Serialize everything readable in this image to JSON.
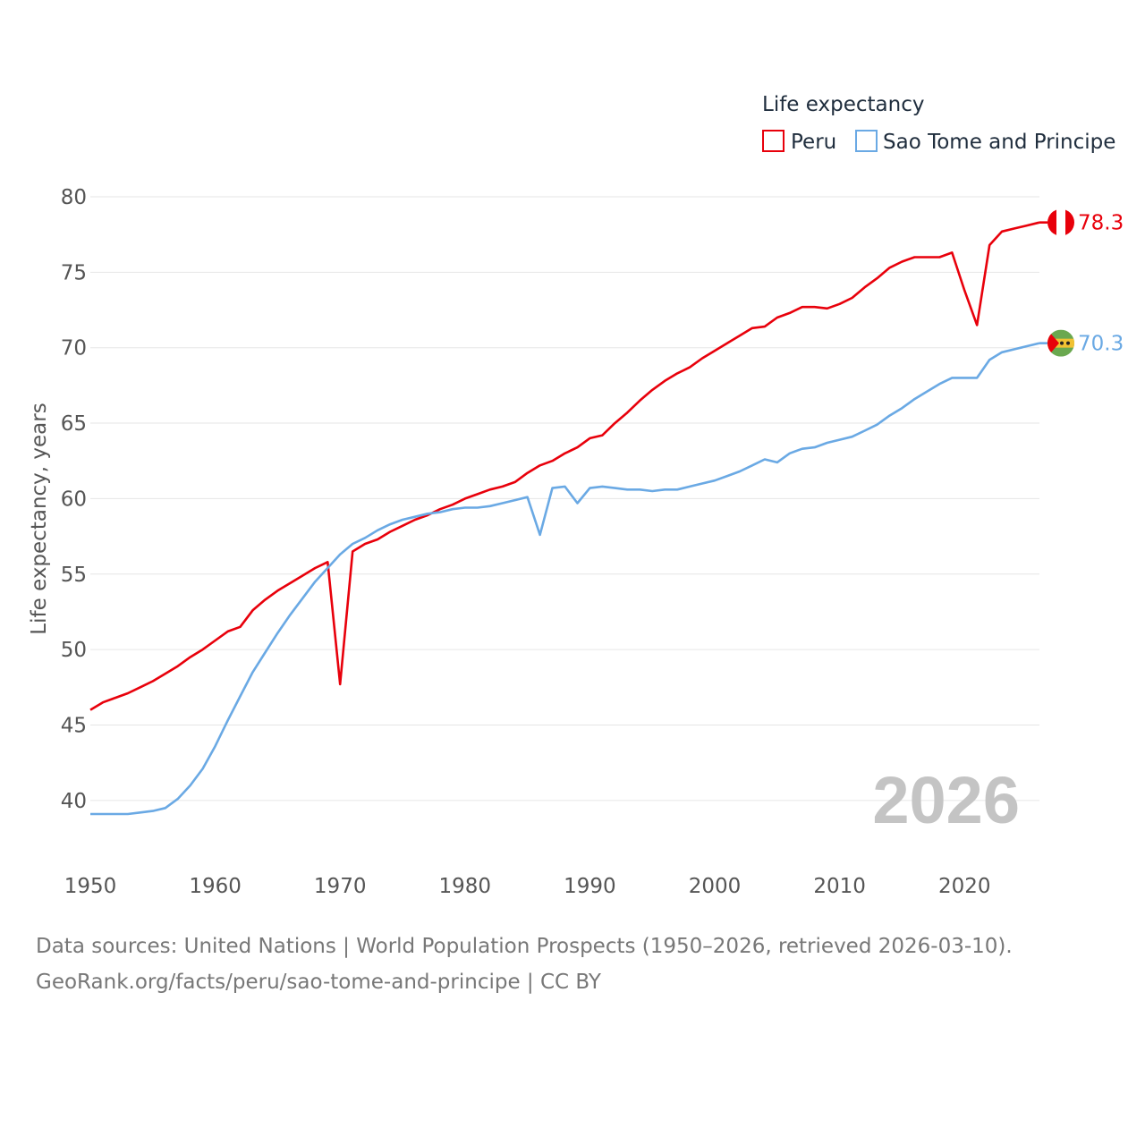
{
  "chart_data": {
    "type": "line",
    "title": "",
    "xlabel": "",
    "ylabel": "Life expectancy, years",
    "xlim": [
      1950,
      2026
    ],
    "ylim": [
      37.5,
      80
    ],
    "yticks": [
      40,
      45,
      50,
      55,
      60,
      65,
      70,
      75,
      80
    ],
    "xticks": [
      1950,
      1960,
      1970,
      1980,
      1990,
      2000,
      2010,
      2020
    ],
    "ytick_labels": [
      "40",
      "45",
      "50",
      "55",
      "60",
      "65",
      "70",
      "75",
      "80"
    ],
    "xtick_labels": [
      "1950",
      "1960",
      "1970",
      "1980",
      "1990",
      "2000",
      "2010",
      "2020"
    ],
    "legend_title": "Life expectancy",
    "legend_position": "top-right",
    "current_year": "2026",
    "x": [
      1950,
      1951,
      1952,
      1953,
      1954,
      1955,
      1956,
      1957,
      1958,
      1959,
      1960,
      1961,
      1962,
      1963,
      1964,
      1965,
      1966,
      1967,
      1968,
      1969,
      1970,
      1971,
      1972,
      1973,
      1974,
      1975,
      1976,
      1977,
      1978,
      1979,
      1980,
      1981,
      1982,
      1983,
      1984,
      1985,
      1986,
      1987,
      1988,
      1989,
      1990,
      1991,
      1992,
      1993,
      1994,
      1995,
      1996,
      1997,
      1998,
      1999,
      2000,
      2001,
      2002,
      2003,
      2004,
      2005,
      2006,
      2007,
      2008,
      2009,
      2010,
      2011,
      2012,
      2013,
      2014,
      2015,
      2016,
      2017,
      2018,
      2019,
      2020,
      2021,
      2022,
      2023,
      2024,
      2025,
      2026
    ],
    "series": [
      {
        "name": "Peru",
        "color": "#e8000b",
        "end_label": "78.3",
        "values": [
          46.0,
          46.5,
          46.8,
          47.1,
          47.5,
          47.9,
          48.4,
          48.9,
          49.5,
          50.0,
          50.6,
          51.2,
          51.5,
          52.6,
          53.3,
          53.9,
          54.4,
          54.9,
          55.4,
          55.8,
          47.7,
          56.5,
          57.0,
          57.3,
          57.8,
          58.2,
          58.6,
          58.9,
          59.3,
          59.6,
          60.0,
          60.3,
          60.6,
          60.8,
          61.1,
          61.7,
          62.2,
          62.5,
          63.0,
          63.4,
          64.0,
          64.2,
          65.0,
          65.7,
          66.5,
          67.2,
          67.8,
          68.3,
          68.7,
          69.3,
          69.8,
          70.3,
          70.8,
          71.3,
          71.4,
          72.0,
          72.3,
          72.7,
          72.7,
          72.6,
          72.9,
          73.3,
          74.0,
          74.6,
          75.3,
          75.7,
          76.0,
          76.0,
          76.0,
          76.3,
          73.8,
          71.5,
          76.8,
          77.7,
          77.9,
          78.1,
          78.3
        ]
      },
      {
        "name": "Sao Tome and Principe",
        "color": "#6aa9e4",
        "end_label": "70.3",
        "values": [
          39.1,
          39.1,
          39.1,
          39.1,
          39.2,
          39.3,
          39.5,
          40.1,
          41.0,
          42.1,
          43.6,
          45.3,
          46.9,
          48.5,
          49.8,
          51.1,
          52.3,
          53.4,
          54.5,
          55.4,
          56.3,
          57.0,
          57.4,
          57.9,
          58.3,
          58.6,
          58.8,
          59.0,
          59.1,
          59.3,
          59.4,
          59.4,
          59.5,
          59.7,
          59.9,
          60.1,
          57.6,
          60.7,
          60.8,
          59.7,
          60.7,
          60.8,
          60.7,
          60.6,
          60.6,
          60.5,
          60.6,
          60.6,
          60.8,
          61.0,
          61.2,
          61.5,
          61.8,
          62.2,
          62.6,
          62.4,
          63.0,
          63.3,
          63.4,
          63.7,
          63.9,
          64.1,
          64.5,
          64.9,
          65.5,
          66.0,
          66.6,
          67.1,
          67.6,
          68.0,
          68.0,
          68.0,
          69.2,
          69.7,
          69.9,
          70.1,
          70.3
        ]
      }
    ]
  },
  "footer": {
    "line1": "Data sources: United Nations | World Population Prospects (1950–2026, retrieved 2026-03-10).",
    "line2": "GeoRank.org/facts/peru/sao-tome-and-principe | CC BY"
  },
  "icons": {
    "peru_flag": "peru-flag-icon",
    "stp_flag": "sao-tome-and-principe-flag-icon"
  },
  "colors": {
    "flag_red": "#e8000b",
    "flag_white": "#ffffff",
    "stp_green": "#6aa84f",
    "stp_yellow": "#f1c232",
    "stp_red": "#e8000b"
  }
}
